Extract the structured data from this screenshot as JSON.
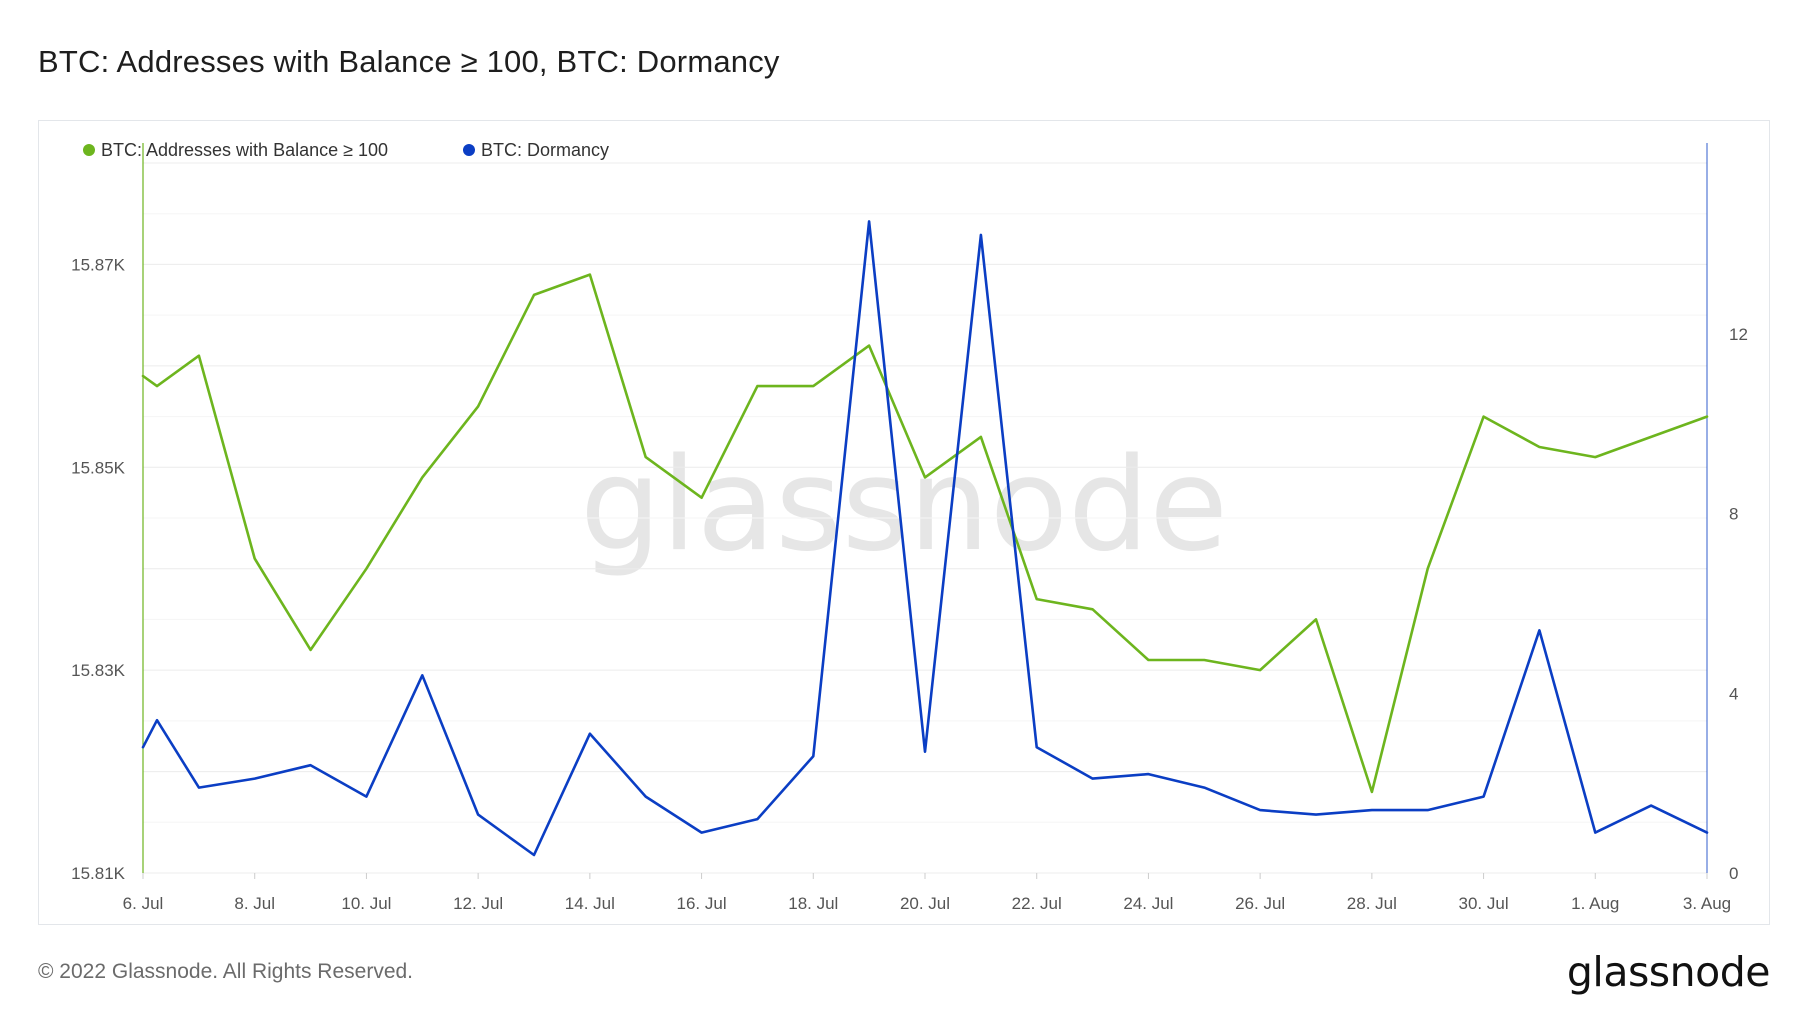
{
  "title": "BTC: Addresses with Balance ≥ 100, BTC: Dormancy",
  "footer": {
    "copyright": "© 2022 Glassnode. All Rights Reserved.",
    "logo": "glassnode"
  },
  "watermark": "glassnode",
  "colors": {
    "green": "#6db51e",
    "blue": "#0b3ec4",
    "grid": "#ececec"
  },
  "chart_data": {
    "type": "line",
    "title": "BTC: Addresses with Balance ≥ 100, BTC: Dormancy",
    "legend_position": "top-left",
    "grid": true,
    "x_start": "2022-07-06",
    "x_end": "2022-08-03",
    "x_ticks": [
      "6. Jul",
      "8. Jul",
      "10. Jul",
      "12. Jul",
      "14. Jul",
      "16. Jul",
      "18. Jul",
      "20. Jul",
      "22. Jul",
      "24. Jul",
      "26. Jul",
      "28. Jul",
      "30. Jul",
      "1. Aug",
      "3. Aug"
    ],
    "y_left": {
      "ticks": [
        "15.81K",
        "15.83K",
        "15.85K",
        "15.87K"
      ],
      "tick_values": [
        15810,
        15830,
        15850,
        15870
      ],
      "range": [
        15810,
        15880
      ]
    },
    "y_right": {
      "ticks": [
        "0",
        "4",
        "8",
        "12"
      ],
      "tick_values": [
        0,
        4,
        8,
        12
      ],
      "range": [
        0,
        15.8
      ]
    },
    "series": [
      {
        "name": "BTC: Addresses with Balance ≥ 100",
        "axis": "left",
        "color": "#6db51e",
        "x": [
          "2022-07-06",
          "2022-07-06T06:00",
          "2022-07-07",
          "2022-07-08",
          "2022-07-09",
          "2022-07-10",
          "2022-07-11",
          "2022-07-12",
          "2022-07-13",
          "2022-07-14",
          "2022-07-15",
          "2022-07-16",
          "2022-07-17",
          "2022-07-18",
          "2022-07-19",
          "2022-07-20",
          "2022-07-21",
          "2022-07-22",
          "2022-07-23",
          "2022-07-24",
          "2022-07-25",
          "2022-07-26",
          "2022-07-27",
          "2022-07-28",
          "2022-07-29",
          "2022-07-30",
          "2022-07-31",
          "2022-08-01",
          "2022-08-02",
          "2022-08-03"
        ],
        "values": [
          15859,
          15858,
          15861,
          15841,
          15832,
          15840,
          15849,
          15856,
          15867,
          15869,
          15851,
          15847,
          15858,
          15858,
          15862,
          15849,
          15853,
          15837,
          15836,
          15831,
          15831,
          15830,
          15835,
          15818,
          15840,
          15855,
          15852,
          15851,
          15853,
          15855
        ]
      },
      {
        "name": "BTC: Dormancy",
        "axis": "right",
        "color": "#0b3ec4",
        "x": [
          "2022-07-06",
          "2022-07-06T06:00",
          "2022-07-07",
          "2022-07-08",
          "2022-07-09",
          "2022-07-10",
          "2022-07-11",
          "2022-07-12",
          "2022-07-13",
          "2022-07-14",
          "2022-07-15",
          "2022-07-16",
          "2022-07-17",
          "2022-07-18",
          "2022-07-19",
          "2022-07-20",
          "2022-07-21",
          "2022-07-22",
          "2022-07-23",
          "2022-07-24",
          "2022-07-25",
          "2022-07-26",
          "2022-07-27",
          "2022-07-28",
          "2022-07-29",
          "2022-07-30",
          "2022-07-31",
          "2022-08-01",
          "2022-08-02",
          "2022-08-03"
        ],
        "values": [
          2.8,
          3.4,
          1.9,
          2.1,
          2.4,
          1.7,
          4.4,
          1.3,
          0.4,
          3.1,
          1.7,
          0.9,
          1.2,
          2.6,
          14.5,
          2.7,
          14.2,
          2.8,
          2.1,
          2.2,
          1.9,
          1.4,
          1.3,
          1.4,
          1.4,
          1.7,
          5.4,
          0.9,
          1.5,
          0.9
        ]
      }
    ]
  }
}
